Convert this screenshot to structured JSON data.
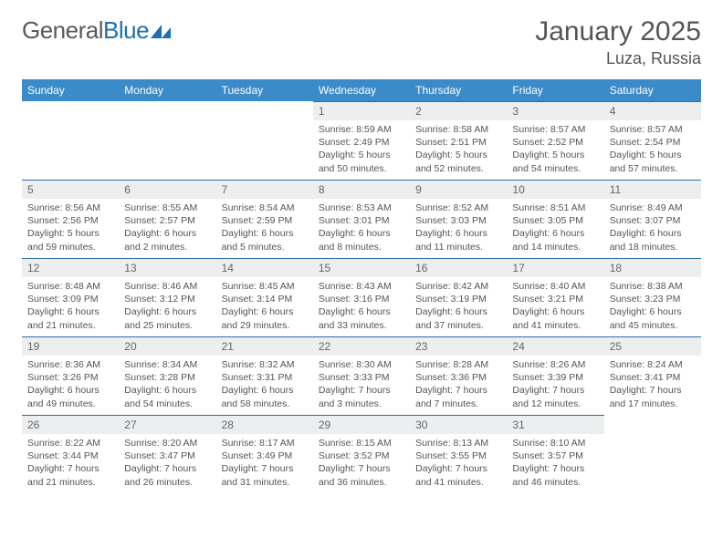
{
  "logo": {
    "text_gray": "General",
    "text_blue": "Blue"
  },
  "title": "January 2025",
  "location": "Luza, Russia",
  "colors": {
    "header_bg": "#3b8bc9",
    "header_text": "#ffffff",
    "daynum_bg": "#eceeef",
    "daynum_border": "#2e6da4",
    "body_text": "#555555",
    "logo_gray": "#5a5a5a",
    "logo_blue": "#1f6fb2",
    "page_bg": "#ffffff"
  },
  "day_labels": [
    "Sunday",
    "Monday",
    "Tuesday",
    "Wednesday",
    "Thursday",
    "Friday",
    "Saturday"
  ],
  "weeks": [
    [
      null,
      null,
      null,
      {
        "n": "1",
        "sr": "8:59 AM",
        "ss": "2:49 PM",
        "dl": "5 hours and 50 minutes."
      },
      {
        "n": "2",
        "sr": "8:58 AM",
        "ss": "2:51 PM",
        "dl": "5 hours and 52 minutes."
      },
      {
        "n": "3",
        "sr": "8:57 AM",
        "ss": "2:52 PM",
        "dl": "5 hours and 54 minutes."
      },
      {
        "n": "4",
        "sr": "8:57 AM",
        "ss": "2:54 PM",
        "dl": "5 hours and 57 minutes."
      }
    ],
    [
      {
        "n": "5",
        "sr": "8:56 AM",
        "ss": "2:56 PM",
        "dl": "5 hours and 59 minutes."
      },
      {
        "n": "6",
        "sr": "8:55 AM",
        "ss": "2:57 PM",
        "dl": "6 hours and 2 minutes."
      },
      {
        "n": "7",
        "sr": "8:54 AM",
        "ss": "2:59 PM",
        "dl": "6 hours and 5 minutes."
      },
      {
        "n": "8",
        "sr": "8:53 AM",
        "ss": "3:01 PM",
        "dl": "6 hours and 8 minutes."
      },
      {
        "n": "9",
        "sr": "8:52 AM",
        "ss": "3:03 PM",
        "dl": "6 hours and 11 minutes."
      },
      {
        "n": "10",
        "sr": "8:51 AM",
        "ss": "3:05 PM",
        "dl": "6 hours and 14 minutes."
      },
      {
        "n": "11",
        "sr": "8:49 AM",
        "ss": "3:07 PM",
        "dl": "6 hours and 18 minutes."
      }
    ],
    [
      {
        "n": "12",
        "sr": "8:48 AM",
        "ss": "3:09 PM",
        "dl": "6 hours and 21 minutes."
      },
      {
        "n": "13",
        "sr": "8:46 AM",
        "ss": "3:12 PM",
        "dl": "6 hours and 25 minutes."
      },
      {
        "n": "14",
        "sr": "8:45 AM",
        "ss": "3:14 PM",
        "dl": "6 hours and 29 minutes."
      },
      {
        "n": "15",
        "sr": "8:43 AM",
        "ss": "3:16 PM",
        "dl": "6 hours and 33 minutes."
      },
      {
        "n": "16",
        "sr": "8:42 AM",
        "ss": "3:19 PM",
        "dl": "6 hours and 37 minutes."
      },
      {
        "n": "17",
        "sr": "8:40 AM",
        "ss": "3:21 PM",
        "dl": "6 hours and 41 minutes."
      },
      {
        "n": "18",
        "sr": "8:38 AM",
        "ss": "3:23 PM",
        "dl": "6 hours and 45 minutes."
      }
    ],
    [
      {
        "n": "19",
        "sr": "8:36 AM",
        "ss": "3:26 PM",
        "dl": "6 hours and 49 minutes."
      },
      {
        "n": "20",
        "sr": "8:34 AM",
        "ss": "3:28 PM",
        "dl": "6 hours and 54 minutes."
      },
      {
        "n": "21",
        "sr": "8:32 AM",
        "ss": "3:31 PM",
        "dl": "6 hours and 58 minutes."
      },
      {
        "n": "22",
        "sr": "8:30 AM",
        "ss": "3:33 PM",
        "dl": "7 hours and 3 minutes."
      },
      {
        "n": "23",
        "sr": "8:28 AM",
        "ss": "3:36 PM",
        "dl": "7 hours and 7 minutes."
      },
      {
        "n": "24",
        "sr": "8:26 AM",
        "ss": "3:39 PM",
        "dl": "7 hours and 12 minutes."
      },
      {
        "n": "25",
        "sr": "8:24 AM",
        "ss": "3:41 PM",
        "dl": "7 hours and 17 minutes."
      }
    ],
    [
      {
        "n": "26",
        "sr": "8:22 AM",
        "ss": "3:44 PM",
        "dl": "7 hours and 21 minutes."
      },
      {
        "n": "27",
        "sr": "8:20 AM",
        "ss": "3:47 PM",
        "dl": "7 hours and 26 minutes."
      },
      {
        "n": "28",
        "sr": "8:17 AM",
        "ss": "3:49 PM",
        "dl": "7 hours and 31 minutes."
      },
      {
        "n": "29",
        "sr": "8:15 AM",
        "ss": "3:52 PM",
        "dl": "7 hours and 36 minutes."
      },
      {
        "n": "30",
        "sr": "8:13 AM",
        "ss": "3:55 PM",
        "dl": "7 hours and 41 minutes."
      },
      {
        "n": "31",
        "sr": "8:10 AM",
        "ss": "3:57 PM",
        "dl": "7 hours and 46 minutes."
      },
      null
    ]
  ],
  "labels": {
    "sunrise": "Sunrise:",
    "sunset": "Sunset:",
    "daylight": "Daylight:"
  }
}
